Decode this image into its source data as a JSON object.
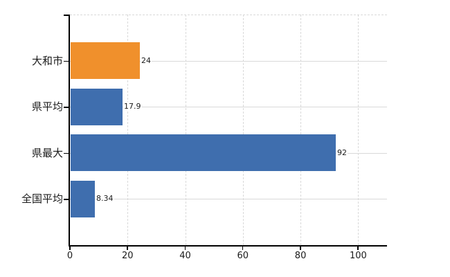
{
  "chart_data": {
    "type": "bar",
    "orientation": "horizontal",
    "title": "",
    "categories": [
      "大和市",
      "県平均",
      "県最大",
      "全国平均"
    ],
    "values": [
      24,
      17.9,
      92,
      8.34
    ],
    "value_labels": [
      "24",
      "17.9",
      "92",
      "8.34"
    ],
    "bar_colors": [
      "#F0902C",
      "#3F6EAE",
      "#3F6EAE",
      "#3F6EAE"
    ],
    "x_tick_values": [
      0,
      20,
      40,
      60,
      80,
      100
    ],
    "x_tick_labels": [
      "0",
      "20",
      "40",
      "60",
      "80",
      "100"
    ],
    "xlim": [
      0,
      110
    ],
    "xlabel": "",
    "ylabel": "",
    "grid": true,
    "legend": false
  },
  "colors": {
    "background": "#ffffff",
    "axis": "#000000",
    "gridline": "#d9d9d9",
    "text": "#1a1a1a",
    "value_label_background": "#ffffff"
  }
}
